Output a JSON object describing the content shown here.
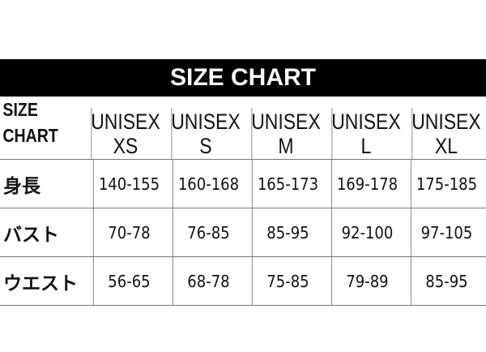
{
  "title": "SIZE CHART",
  "corner": [
    "SIZE",
    "CHART"
  ],
  "columns": [
    {
      "line1": "UNISEX",
      "line2": "XS"
    },
    {
      "line1": "UNISEX",
      "line2": "S"
    },
    {
      "line1": "UNISEX",
      "line2": "M"
    },
    {
      "line1": "UNISEX",
      "line2": "L"
    },
    {
      "line1": "UNISEX",
      "line2": "XL"
    }
  ],
  "rows": [
    {
      "label": "身長",
      "values": [
        "140-155",
        "160-168",
        "165-173",
        "169-178",
        "175-185"
      ]
    },
    {
      "label": "バスト",
      "values": [
        "70-78",
        "76-85",
        "85-95",
        "92-100",
        "97-105"
      ]
    },
    {
      "label": "ウエスト",
      "values": [
        "56-65",
        "68-78",
        "75-85",
        "79-89",
        "85-95"
      ]
    }
  ]
}
